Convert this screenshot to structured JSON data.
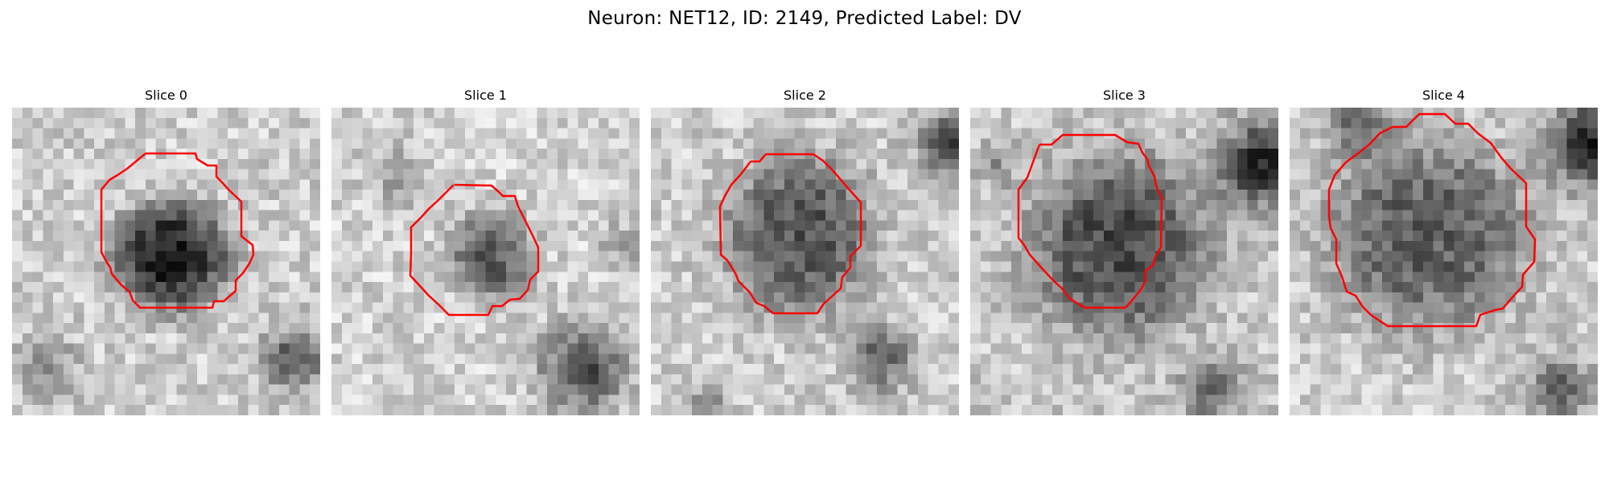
{
  "figure": {
    "title": "Neuron: NET12, ID: 2149, Predicted Label: DV"
  },
  "colors": {
    "contour": "#ff0000",
    "background": "#ffffff"
  },
  "panels": [
    {
      "title": "Slice 0"
    },
    {
      "title": "Slice 1"
    },
    {
      "title": "Slice 2"
    },
    {
      "title": "Slice 3"
    },
    {
      "title": "Slice 4"
    }
  ]
}
